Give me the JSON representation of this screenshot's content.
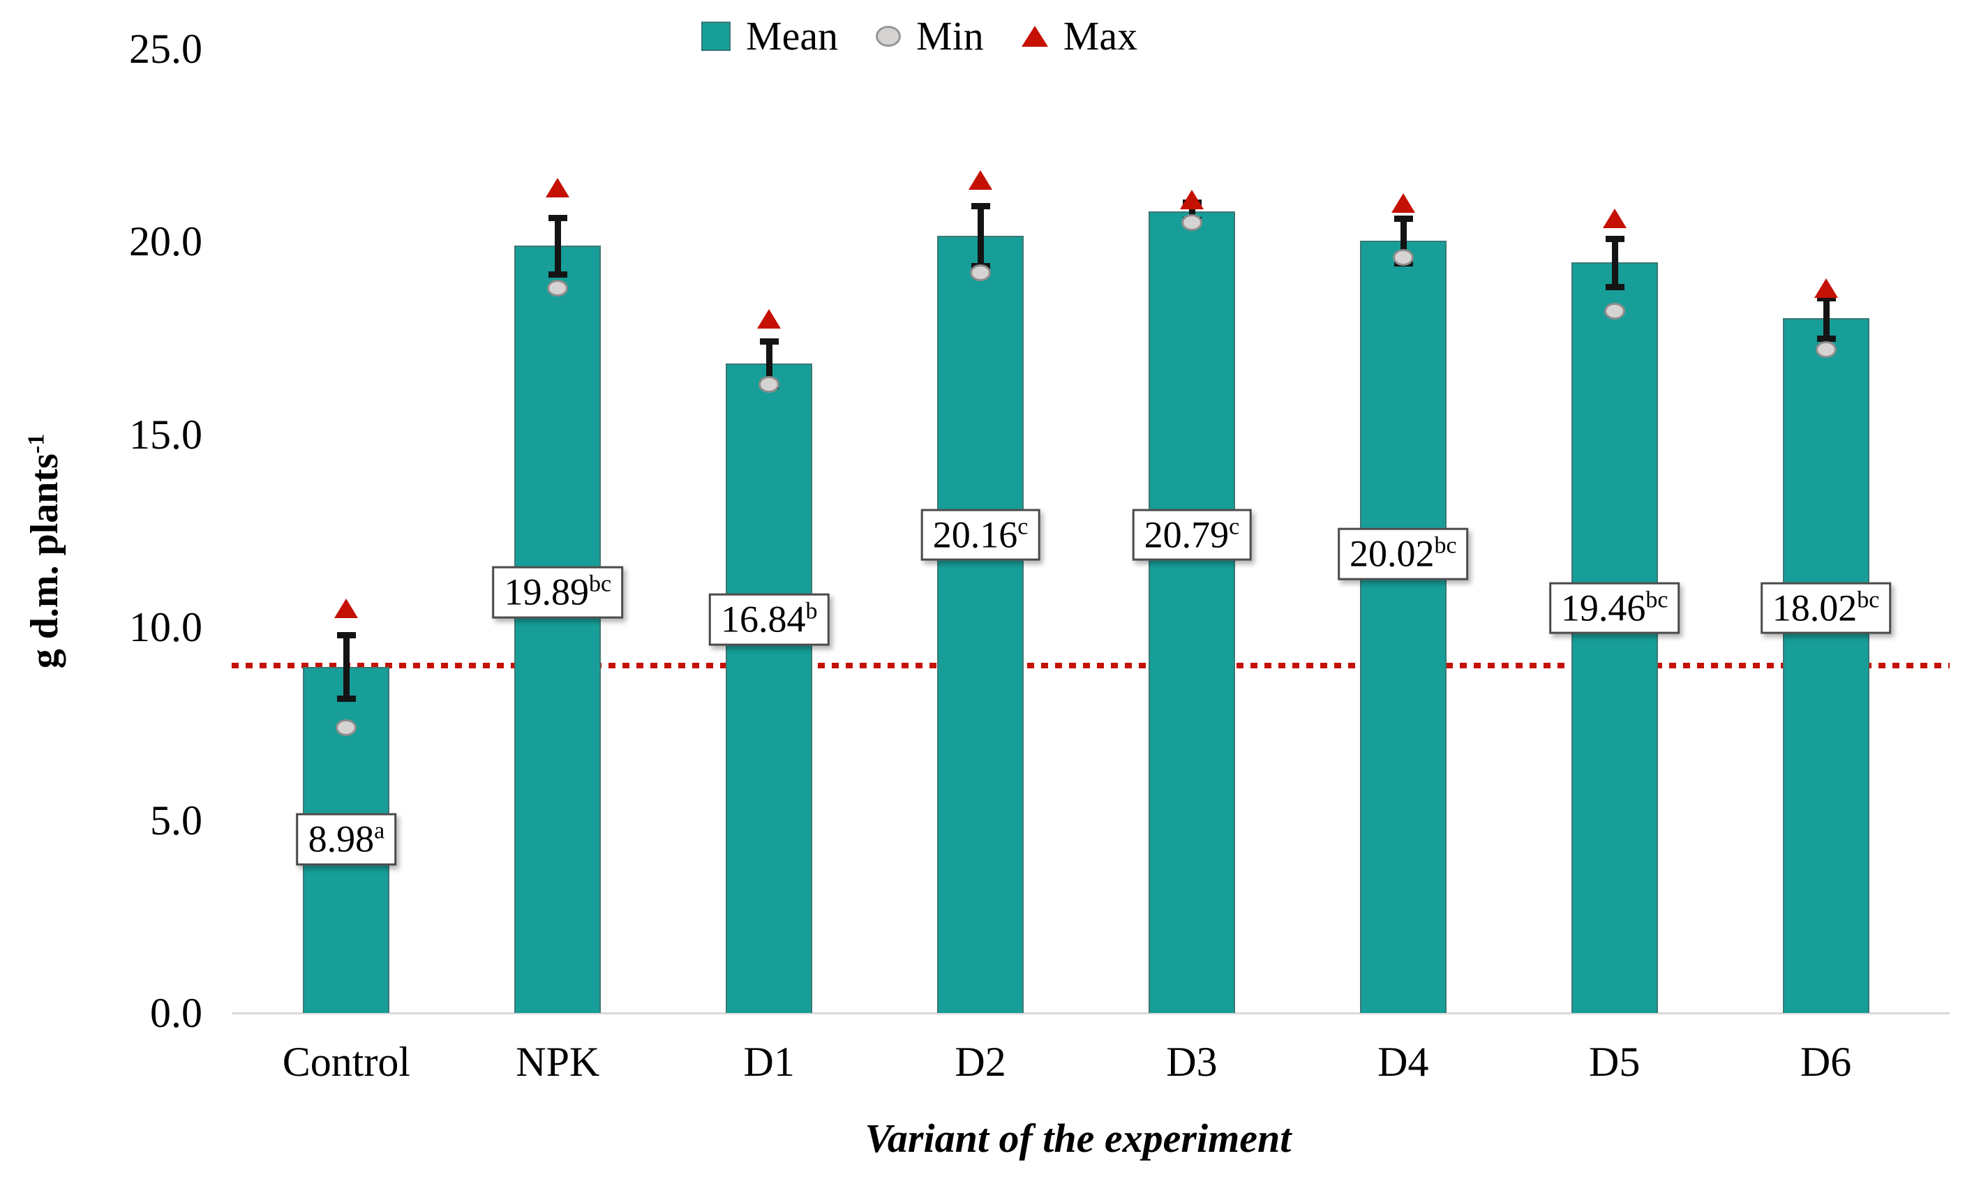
{
  "chart_data": {
    "type": "bar",
    "title": "",
    "xlabel": "Variant of the experiment",
    "ylabel": {
      "base": "g d.m. plants",
      "sup": "-1"
    },
    "ylim": [
      0,
      25
    ],
    "grid": false,
    "legend_position": "top",
    "yticks": [
      {
        "value": 0,
        "label": "0.0"
      },
      {
        "value": 5,
        "label": "5.0"
      },
      {
        "value": 10,
        "label": "10.0"
      },
      {
        "value": 15,
        "label": "15.0"
      },
      {
        "value": 20,
        "label": "20.0"
      },
      {
        "value": 25,
        "label": "25.0"
      }
    ],
    "categories": [
      "Control",
      "NPK",
      "D1",
      "D2",
      "D3",
      "D4",
      "D5",
      "D6"
    ],
    "series": [
      {
        "name": "Mean",
        "marker": "square",
        "values": [
          8.98,
          19.89,
          16.84,
          20.16,
          20.79,
          20.02,
          19.46,
          18.02
        ]
      },
      {
        "name": "Min",
        "marker": "circle",
        "values": [
          7.4,
          18.8,
          16.3,
          19.2,
          20.5,
          19.6,
          18.2,
          17.2
        ]
      },
      {
        "name": "Max",
        "marker": "triangle",
        "values": [
          10.5,
          21.4,
          18.0,
          21.6,
          21.1,
          21.0,
          20.6,
          18.8
        ]
      }
    ],
    "error_bars": [
      0.9,
      0.8,
      0.65,
      0.85,
      0.3,
      0.65,
      0.7,
      0.6
    ],
    "bar_labels": [
      {
        "value": "8.98",
        "sig": "a",
        "label_y": 4.5
      },
      {
        "value": "19.89",
        "sig": "bc",
        "label_y": 10.9
      },
      {
        "value": "16.84",
        "sig": "b",
        "label_y": 10.2
      },
      {
        "value": "20.16",
        "sig": "c",
        "label_y": 12.4
      },
      {
        "value": "20.79",
        "sig": "c",
        "label_y": 12.4
      },
      {
        "value": "20.02",
        "sig": "bc",
        "label_y": 11.9
      },
      {
        "value": "19.46",
        "sig": "bc",
        "label_y": 10.5
      },
      {
        "value": "18.02",
        "sig": "bc",
        "label_y": 10.5
      }
    ],
    "reference_line": {
      "value": 9.0,
      "style": "dotted",
      "color": "#c41104"
    },
    "legend": [
      {
        "label": "Mean",
        "marker": "square",
        "color": "#179e98"
      },
      {
        "label": "Min",
        "marker": "circle",
        "color": "#d6d3d3"
      },
      {
        "label": "Max",
        "marker": "triangle",
        "color": "#c41104"
      }
    ],
    "colors": {
      "bar": "#179e98",
      "min_marker": "#d6d3d3",
      "max_marker": "#c41104",
      "error_bar": "#141414",
      "reference_line": "#c41104",
      "axis_line": "#d9d9d9",
      "text": "#000000"
    }
  }
}
